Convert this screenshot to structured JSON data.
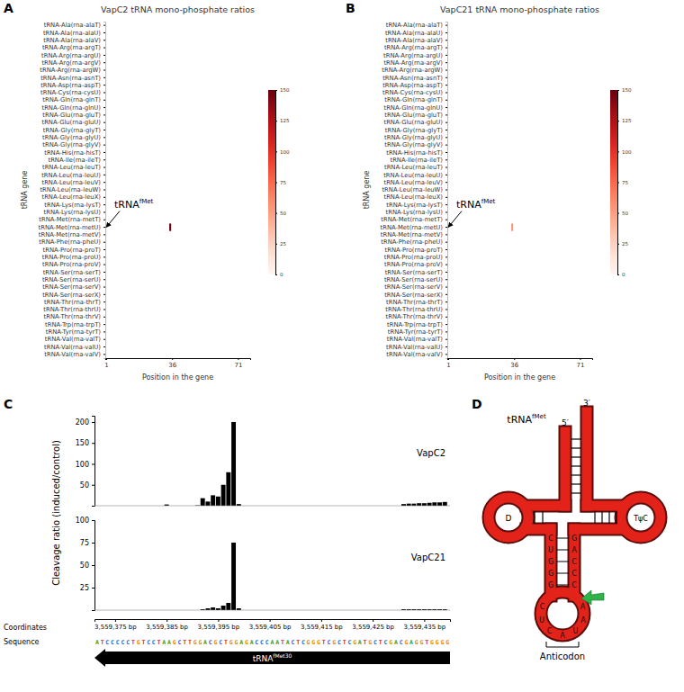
{
  "panels": [
    "A",
    "B",
    "C",
    "D"
  ],
  "chart_data": [
    {
      "type": "heatmap",
      "title": "VapC2 tRNA mono-phosphate ratios",
      "x_label": "Position in the gene",
      "y_label": "tRNA gene",
      "categories": [
        "tRNA-Ala(rna-alaT)",
        "tRNA-Ala(rna-alaU)",
        "tRNA-Ala(rna-alaV)",
        "tRNA-Arg(rna-argT)",
        "tRNA-Arg(rna-argU)",
        "tRNA-Arg(rna-argV)",
        "tRNA-Arg(rna-argW)",
        "tRNA-Asn(rna-asnT)",
        "tRNA-Asp(rna-aspT)",
        "tRNA-Cys(rna-cysU)",
        "tRNA-Gln(rna-glnT)",
        "tRNA-Gln(rna-glnU)",
        "tRNA-Glu(rna-gluT)",
        "tRNA-Glu(rna-gluU)",
        "tRNA-Gly(rna-glyT)",
        "tRNA-Gly(rna-glyU)",
        "tRNA-Gly(rna-glyV)",
        "tRNA-His(rna-hisT)",
        "tRNA-Ile(rna-ileT)",
        "tRNA-Leu(rna-leuT)",
        "tRNA-Leu(rna-leuU)",
        "tRNA-Leu(rna-leuV)",
        "tRNA-Leu(rna-leuW)",
        "tRNA-Leu(rna-leuX)",
        "tRNA-Lys(rna-lysT)",
        "tRNA-Lys(rna-lysU)",
        "tRNA-Met(rna-metT)",
        "tRNA-Met(rna-metU)",
        "tRNA-Met(rna-metV)",
        "tRNA-Phe(rna-pheU)",
        "tRNA-Pro(rna-proT)",
        "tRNA-Pro(rna-proU)",
        "tRNA-Pro(rna-proV)",
        "tRNA-Ser(rna-serT)",
        "tRNA-Ser(rna-serU)",
        "tRNA-Ser(rna-serV)",
        "tRNA-Ser(rna-serX)",
        "tRNA-Thr(rna-thrT)",
        "tRNA-Thr(rna-thrU)",
        "tRNA-Thr(rna-thrV)",
        "tRNA-Trp(rna-trpT)",
        "tRNA-Tyr(rna-tyrT)",
        "tRNA-Val(rna-valT)",
        "tRNA-Val(rna-valU)",
        "tRNA-Val(rna-valV)"
      ],
      "xlim": [
        0.5,
        77.5
      ],
      "xticks": [
        1,
        36,
        71
      ],
      "cells": [
        {
          "row": 27,
          "x": 35,
          "value": 150
        }
      ],
      "colorbar": {
        "range": [
          0,
          150
        ],
        "ticks": [
          0,
          25,
          50,
          75,
          100,
          125,
          150
        ]
      },
      "annotations": [
        {
          "text": "tRNA",
          "sup": "fMet"
        }
      ]
    },
    {
      "type": "heatmap",
      "title": "VapC21 tRNA mono-phosphate ratios",
      "x_label": "Position in the gene",
      "y_label": "tRNA gene",
      "categories": [
        "tRNA-Ala(rna-alaT)",
        "tRNA-Ala(rna-alaU)",
        "tRNA-Ala(rna-alaV)",
        "tRNA-Arg(rna-argT)",
        "tRNA-Arg(rna-argU)",
        "tRNA-Arg(rna-argV)",
        "tRNA-Arg(rna-argW)",
        "tRNA-Asn(rna-asnT)",
        "tRNA-Asp(rna-aspT)",
        "tRNA-Cys(rna-cysU)",
        "tRNA-Gln(rna-glnT)",
        "tRNA-Gln(rna-glnU)",
        "tRNA-Glu(rna-gluT)",
        "tRNA-Glu(rna-gluU)",
        "tRNA-Gly(rna-glyT)",
        "tRNA-Gly(rna-glyU)",
        "tRNA-Gly(rna-glyV)",
        "tRNA-His(rna-hisT)",
        "tRNA-Ile(rna-ileT)",
        "tRNA-Leu(rna-leuT)",
        "tRNA-Leu(rna-leuU)",
        "tRNA-Leu(rna-leuV)",
        "tRNA-Leu(rna-leuW)",
        "tRNA-Leu(rna-leuX)",
        "tRNA-Lys(rna-lysT)",
        "tRNA-Lys(rna-lysU)",
        "tRNA-Met(rna-metT)",
        "tRNA-Met(rna-metU)",
        "tRNA-Met(rna-metV)",
        "tRNA-Phe(rna-pheU)",
        "tRNA-Pro(rna-proT)",
        "tRNA-Pro(rna-proU)",
        "tRNA-Pro(rna-proV)",
        "tRNA-Ser(rna-serT)",
        "tRNA-Ser(rna-serU)",
        "tRNA-Ser(rna-serV)",
        "tRNA-Ser(rna-serX)",
        "tRNA-Thr(rna-thrT)",
        "tRNA-Thr(rna-thrU)",
        "tRNA-Thr(rna-thrV)",
        "tRNA-Trp(rna-trpT)",
        "tRNA-Tyr(rna-tyrT)",
        "tRNA-Val(rna-valT)",
        "tRNA-Val(rna-valU)",
        "tRNA-Val(rna-valV)"
      ],
      "xlim": [
        0.5,
        77.5
      ],
      "xticks": [
        1,
        36,
        71
      ],
      "cells": [
        {
          "row": 27,
          "x": 35,
          "value": 55
        }
      ],
      "colorbar": {
        "range": [
          0,
          150
        ],
        "ticks": [
          0,
          25,
          50,
          75,
          100,
          125,
          150
        ]
      },
      "annotations": [
        {
          "text": "tRNA",
          "sup": "fMet"
        }
      ]
    },
    {
      "type": "bar",
      "title": "VapC2",
      "y_label": "Cleavage ratio (induced/control)",
      "x": [
        3559385,
        3559391,
        3559392,
        3559393,
        3559394,
        3559395,
        3559396,
        3559397,
        3559398,
        3559399,
        3559431,
        3559432,
        3559433,
        3559434,
        3559435,
        3559436,
        3559437,
        3559438,
        3559439
      ],
      "values": [
        3,
        1,
        18,
        10,
        25,
        22,
        50,
        80,
        200,
        4,
        4,
        5,
        5,
        6,
        6,
        7,
        8,
        8,
        9
      ],
      "color": "#000000",
      "xlim": [
        3559371,
        3559440
      ],
      "ylim": [
        0,
        215
      ],
      "yticks": [
        50,
        100,
        150,
        200
      ],
      "tick_labels": "y"
    },
    {
      "type": "bar",
      "title": "VapC21",
      "x_label": "Coordinates",
      "x": [
        3559385,
        3559391,
        3559392,
        3559393,
        3559394,
        3559395,
        3559396,
        3559397,
        3559398,
        3559399,
        3559431,
        3559432,
        3559433,
        3559434,
        3559435,
        3559436,
        3559437,
        3559438,
        3559439
      ],
      "values": [
        0,
        0,
        1,
        2,
        3,
        2,
        5,
        8,
        75,
        2,
        1,
        1,
        1,
        1,
        1,
        1,
        1,
        1,
        1
      ],
      "color": "#000000",
      "xlim": [
        3559371,
        3559440
      ],
      "ylim": [
        0,
        100
      ],
      "yticks": [
        25,
        50,
        75,
        100
      ],
      "xticks": [
        {
          "value": 3559375,
          "label": "3,559,375 bp"
        },
        {
          "value": 3559385,
          "label": "3,559,385 bp"
        },
        {
          "value": 3559395,
          "label": "3,559,395 bp"
        },
        {
          "value": 3559405,
          "label": "3,559,405 bp"
        },
        {
          "value": 3559415,
          "label": "3,559,415 bp"
        },
        {
          "value": 3559425,
          "label": "3,559,425 bp"
        },
        {
          "value": 3559435,
          "label": "3,559,435 bp"
        }
      ]
    }
  ],
  "sequence": {
    "label": "Sequence",
    "text": "ATCCCCCTGTCCTAAGCTTGGACGCTGGAGACCCAATACTCGGGTCGCTCGATGCTCGACGAGGTGGGG",
    "gene": {
      "text": "tRNA",
      "sup": "fMet30"
    }
  },
  "diagram": {
    "title": {
      "text": "tRNA",
      "sup": "fMet"
    },
    "five_prime": "5′",
    "three_prime": "3′",
    "d_loop": "D",
    "t_loop": "TψC",
    "stem_left": [
      "C",
      "U",
      "G",
      "G",
      "G"
    ],
    "stem_right": [
      "G",
      "A",
      "C",
      "C",
      "C"
    ],
    "anticodon_loop": [
      "C",
      "U",
      "C",
      "A",
      "U",
      "A",
      "A"
    ],
    "anticodon_label": "Anticodon"
  }
}
